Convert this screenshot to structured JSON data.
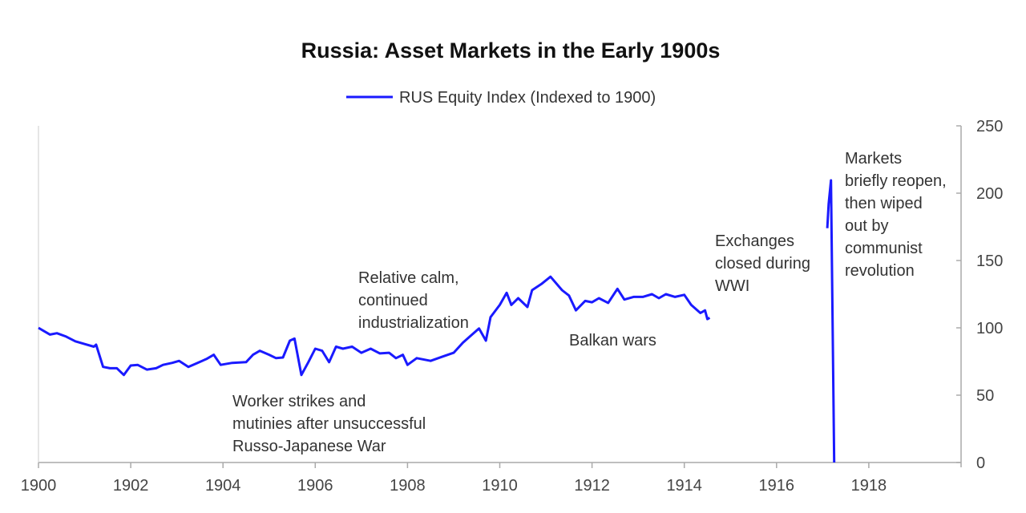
{
  "chart_data": {
    "type": "line",
    "title": "Russia: Asset Markets in the Early 1900s",
    "xlabel": "",
    "ylabel": "",
    "xlim": [
      1900,
      1920
    ],
    "ylim": [
      0,
      250
    ],
    "x_ticks": [
      "1900",
      "1902",
      "1904",
      "1906",
      "1908",
      "1910",
      "1912",
      "1914",
      "1916",
      "1918"
    ],
    "y_ticks": [
      "0",
      "50",
      "100",
      "150",
      "200",
      "250"
    ],
    "y_axis_side": "right",
    "grid": false,
    "legend_position": "top-center",
    "series": [
      {
        "name": "RUS Equity Index (Indexed to 1900)",
        "color": "#1a1aff",
        "segments": [
          [
            [
              1900.0,
              100
            ],
            [
              1900.1,
              98
            ],
            [
              1900.25,
              95
            ],
            [
              1900.4,
              96
            ],
            [
              1900.6,
              93.5
            ],
            [
              1900.8,
              90
            ],
            [
              1901.0,
              88
            ],
            [
              1901.2,
              86
            ],
            [
              1901.25,
              87.5
            ],
            [
              1901.4,
              71
            ],
            [
              1901.55,
              70
            ],
            [
              1901.7,
              70
            ],
            [
              1901.85,
              65
            ],
            [
              1902.0,
              72
            ],
            [
              1902.15,
              72.5
            ],
            [
              1902.35,
              69
            ],
            [
              1902.55,
              70
            ],
            [
              1902.7,
              72.5
            ],
            [
              1902.9,
              74
            ],
            [
              1903.05,
              75.5
            ],
            [
              1903.25,
              71
            ],
            [
              1903.45,
              74
            ],
            [
              1903.65,
              77
            ],
            [
              1903.8,
              80
            ],
            [
              1903.95,
              72.5
            ],
            [
              1904.2,
              74
            ],
            [
              1904.5,
              74.5
            ],
            [
              1904.65,
              80
            ],
            [
              1904.8,
              83
            ],
            [
              1905.0,
              80
            ],
            [
              1905.15,
              77.5
            ],
            [
              1905.3,
              78
            ],
            [
              1905.45,
              90.5
            ],
            [
              1905.55,
              92
            ],
            [
              1905.7,
              65
            ],
            [
              1905.85,
              74.5
            ],
            [
              1906.0,
              84.5
            ],
            [
              1906.15,
              83
            ],
            [
              1906.3,
              74.5
            ],
            [
              1906.45,
              86
            ],
            [
              1906.6,
              84.5
            ],
            [
              1906.8,
              86
            ],
            [
              1907.0,
              81.5
            ],
            [
              1907.2,
              84.5
            ],
            [
              1907.4,
              81
            ],
            [
              1907.6,
              81.5
            ],
            [
              1907.75,
              77.5
            ],
            [
              1907.9,
              80
            ],
            [
              1908.0,
              72.5
            ],
            [
              1908.2,
              77.5
            ],
            [
              1908.5,
              75.5
            ],
            [
              1908.75,
              78.5
            ],
            [
              1909.0,
              81.5
            ],
            [
              1909.2,
              89
            ],
            [
              1909.35,
              93.5
            ],
            [
              1909.55,
              99.5
            ],
            [
              1909.7,
              90.5
            ],
            [
              1909.8,
              108
            ],
            [
              1910.0,
              117
            ],
            [
              1910.15,
              126
            ],
            [
              1910.25,
              117
            ],
            [
              1910.4,
              122
            ],
            [
              1910.6,
              115.5
            ],
            [
              1910.7,
              128
            ],
            [
              1910.9,
              132.5
            ],
            [
              1911.1,
              138
            ],
            [
              1911.35,
              128
            ],
            [
              1911.5,
              124
            ],
            [
              1911.65,
              113
            ],
            [
              1911.85,
              120
            ],
            [
              1912.0,
              119
            ],
            [
              1912.15,
              122
            ],
            [
              1912.35,
              118.5
            ],
            [
              1912.55,
              129
            ],
            [
              1912.7,
              121
            ],
            [
              1912.9,
              123
            ],
            [
              1913.1,
              123
            ],
            [
              1913.3,
              125
            ],
            [
              1913.45,
              122
            ],
            [
              1913.6,
              125
            ],
            [
              1913.8,
              123
            ],
            [
              1914.0,
              124.5
            ],
            [
              1914.15,
              117
            ],
            [
              1914.35,
              111
            ],
            [
              1914.45,
              113
            ],
            [
              1914.5,
              106.5
            ],
            [
              1914.55,
              107.5
            ]
          ],
          [
            [
              1917.1,
              174
            ],
            [
              1917.13,
              192
            ],
            [
              1917.18,
              209.5
            ],
            [
              1917.25,
              0
            ]
          ]
        ]
      }
    ],
    "annotations": [
      {
        "id": "strikes",
        "lines": [
          "Worker strikes and",
          "mutinies after unsuccessful",
          "Russo-Japanese War"
        ]
      },
      {
        "id": "calm",
        "lines": [
          "Relative calm,",
          "continued",
          "industrialization"
        ]
      },
      {
        "id": "balkan",
        "lines": [
          "Balkan wars"
        ]
      },
      {
        "id": "closed",
        "lines": [
          "Exchanges",
          "closed during",
          "WWI"
        ]
      },
      {
        "id": "revolution",
        "lines": [
          "Markets",
          "briefly reopen,",
          "then wiped",
          "out by",
          "communist",
          "revolution"
        ]
      }
    ]
  }
}
